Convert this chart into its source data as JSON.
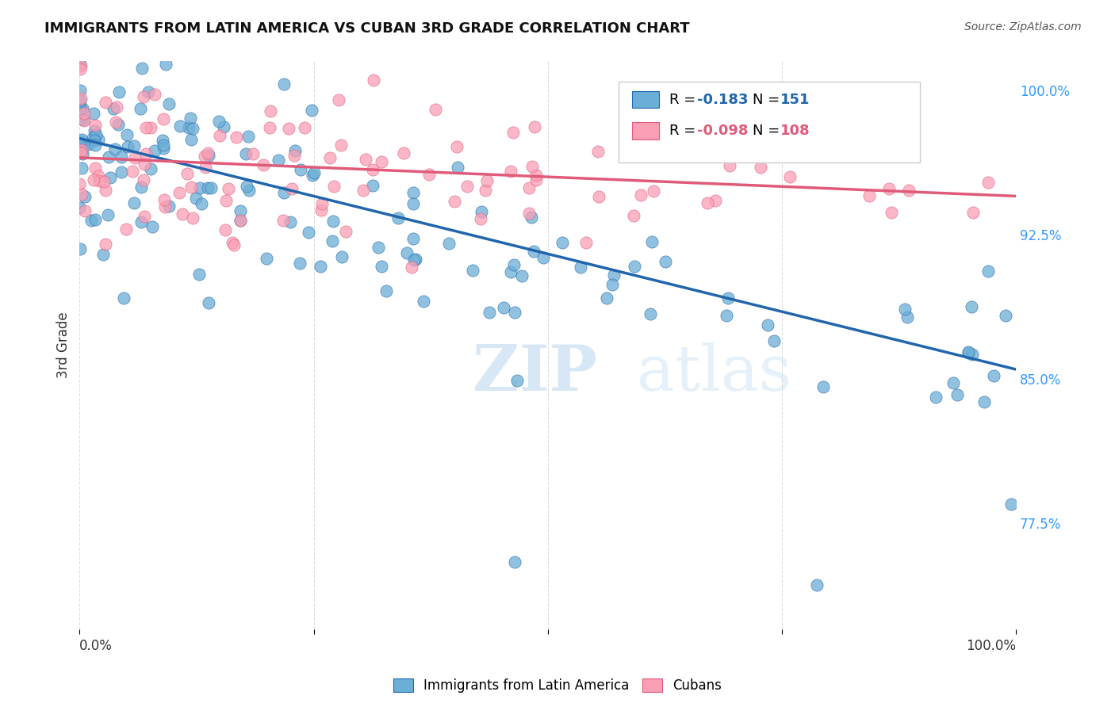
{
  "title": "IMMIGRANTS FROM LATIN AMERICA VS CUBAN 3RD GRADE CORRELATION CHART",
  "source": "Source: ZipAtlas.com",
  "ylabel": "3rd Grade",
  "yticks": [
    "100.0%",
    "92.5%",
    "85.0%",
    "77.5%"
  ],
  "ytick_values": [
    1.0,
    0.925,
    0.85,
    0.775
  ],
  "legend_blue_r": "-0.183",
  "legend_blue_n": "151",
  "legend_pink_r": "-0.098",
  "legend_pink_n": "108",
  "blue_color": "#6baed6",
  "pink_color": "#fa9fb5",
  "blue_line_color": "#2166ac",
  "pink_line_color": "#e05a7a",
  "watermark_zip": "ZIP",
  "watermark_atlas": "atlas",
  "xmin": 0.0,
  "xmax": 1.0,
  "ymin": 0.72,
  "ymax": 1.015,
  "blue_trend_y_start": 0.975,
  "blue_trend_y_end": 0.855,
  "pink_trend_y_start": 0.965,
  "pink_trend_y_end": 0.945,
  "bottom_legend_labels": [
    "Immigrants from Latin America",
    "Cubans"
  ]
}
